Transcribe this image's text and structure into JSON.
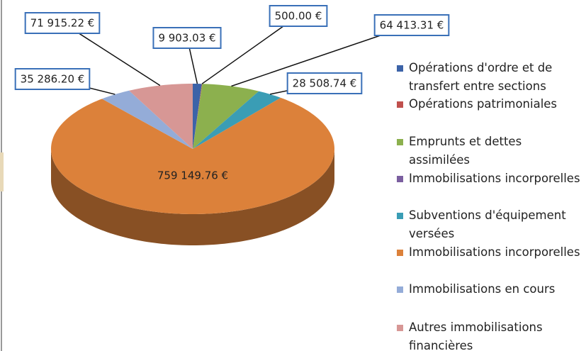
{
  "chart_data": {
    "type": "pie3d",
    "categories": [
      "Opérations d'ordre et de transfert entre sections",
      "Opérations patrimoniales",
      "Emprunts et dettes assimilées",
      "Immobilisations incorporelles",
      "Subventions d'équipement versées",
      "Immobilisations incorporelles",
      "Immobilisations en cours",
      "Autres immobilisations financières"
    ],
    "values": [
      9903.03,
      500.0,
      64413.31,
      null,
      28508.74,
      759149.76,
      35286.2,
      71915.22
    ],
    "value_labels": [
      "9 903.03 €",
      "500.00 €",
      "64 413.31 €",
      null,
      "28 508.74 €",
      "759 149.76 €",
      "35 286.20 €",
      "71 915.22 €"
    ],
    "colors": [
      "#3c63a8",
      "#c0504d",
      "#8cb04e",
      "#7b5fa0",
      "#3a9db5",
      "#dc813a",
      "#94acd8",
      "#d79795"
    ],
    "legend": "right"
  }
}
